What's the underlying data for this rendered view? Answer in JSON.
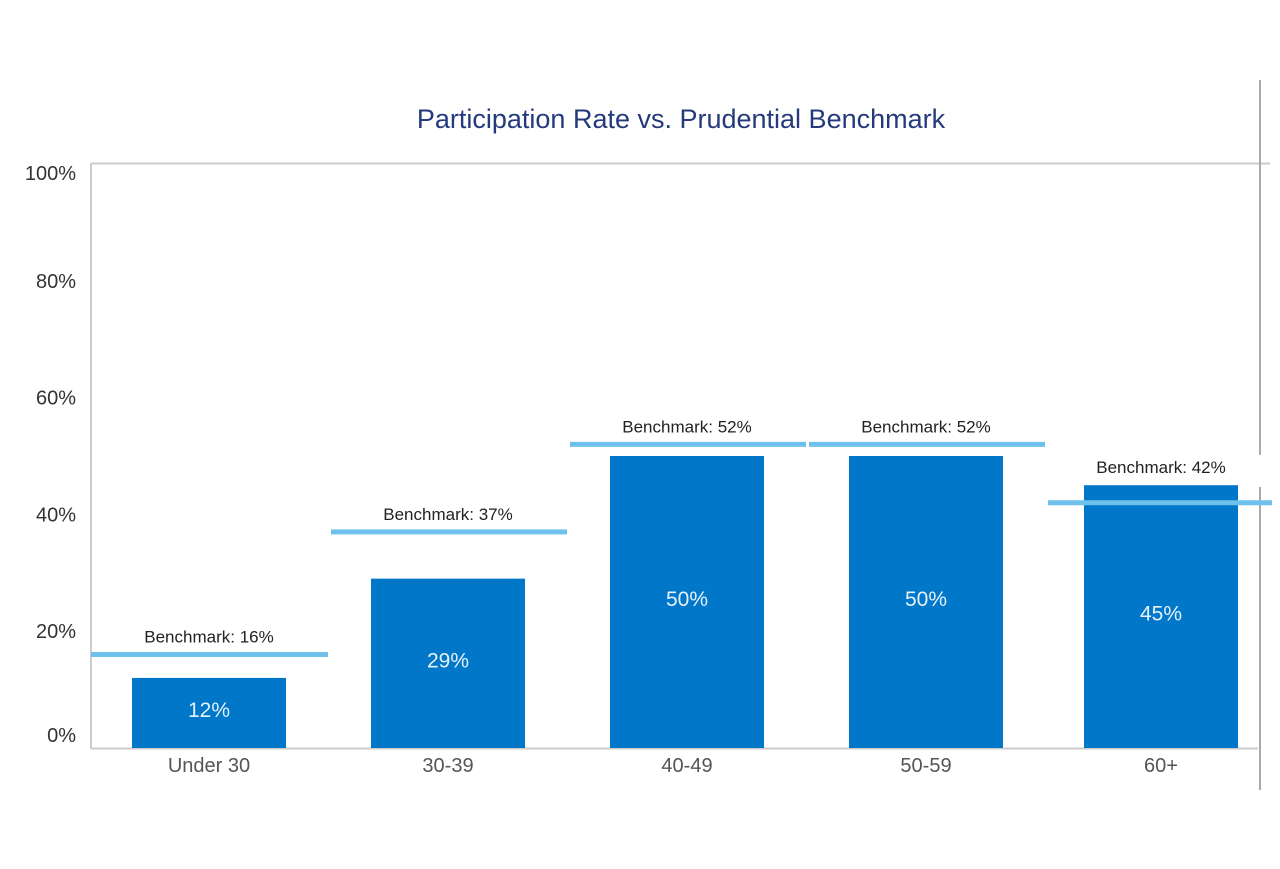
{
  "chart_data": {
    "type": "bar",
    "title": "Participation Rate vs. Prudential Benchmark",
    "xlabel": "",
    "ylabel": "",
    "ylim": [
      0,
      100
    ],
    "yticks": [
      "0%",
      "20%",
      "40%",
      "60%",
      "80%",
      "100%"
    ],
    "ytick_values": [
      0,
      20,
      40,
      60,
      80,
      100
    ],
    "categories": [
      "Under 30",
      "30-39",
      "40-49",
      "50-59",
      "60+"
    ],
    "values": [
      12,
      29,
      50,
      50,
      45
    ],
    "value_labels": [
      "12%",
      "29%",
      "50%",
      "50%",
      "45%"
    ],
    "benchmarks": [
      16,
      37,
      52,
      52,
      42
    ],
    "benchmark_labels": [
      "Benchmark: 16%",
      "Benchmark: 37%",
      "Benchmark: 52%",
      "Benchmark: 52%",
      "Benchmark: 42%"
    ],
    "grid": false,
    "colors": {
      "bar": "#0077c8",
      "benchmark": "#6ec1ec",
      "title": "#243a7c"
    }
  }
}
